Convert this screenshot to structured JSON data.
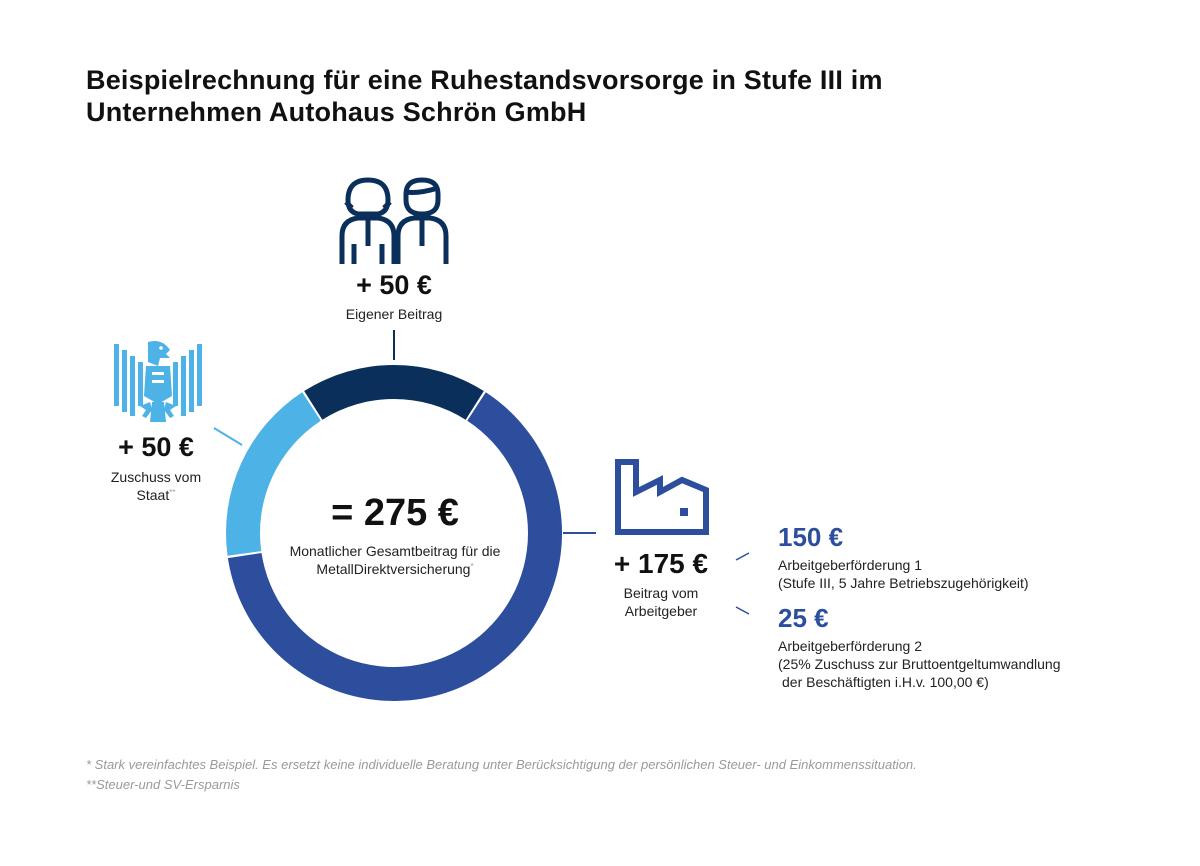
{
  "title": {
    "line1": "Beispielrechnung für eine Ruhestandsvorsorge in Stufe III im",
    "line2": "Unternehmen Autohaus Schrön GmbH"
  },
  "chart_data": {
    "type": "donut",
    "total_label": "= 275 €",
    "total_caption_1": "Monatlicher Gesamtbeitrag für die",
    "total_caption_2": "MetallDirektversicherung",
    "total_caption_mark": "*",
    "slices": [
      {
        "name": "Eigener Beitrag",
        "value": 50,
        "color": "#0b2f5b"
      },
      {
        "name": "Beitrag vom Arbeitgeber",
        "value": 175,
        "color": "#2d4e9c"
      },
      {
        "name": "Zuschuss vom Staat",
        "value": 50,
        "color": "#4db2e6"
      }
    ]
  },
  "eigener": {
    "amount": "+ 50 €",
    "label": "Eigener Beitrag",
    "icon": "couple-icon"
  },
  "staat": {
    "amount": "+ 50 €",
    "label_1": "Zuschuss vom",
    "label_2": "Staat",
    "mark": "**",
    "icon": "federal-eagle-icon"
  },
  "arbeitgeber": {
    "amount": "+ 175 €",
    "label_1": "Beitrag vom",
    "label_2": "Arbeitgeber",
    "icon": "factory-icon",
    "items": [
      {
        "value": "150 €",
        "label_1": "Arbeitgeberförderung 1",
        "label_2": "(Stufe III, 5 Jahre Betriebszugehörigkeit)"
      },
      {
        "value": "25 €",
        "label_1": "Arbeitgeberförderung 2",
        "label_2": "(25% Zuschuss zur Bruttoentgeltumwandlung",
        "label_3": "der Beschäftigten i.H.v. 100,00 €)"
      }
    ]
  },
  "footnotes": {
    "note1": "*  Stark vereinfachtes Beispiel. Es ersetzt keine individuelle Beratung unter Berücksichtigung der persönlichen Steuer- und Einkommenssituation.",
    "note2": "**Steuer-und SV-Ersparnis"
  },
  "colors": {
    "dark_navy": "#0b2f5b",
    "blue": "#2d4e9c",
    "light_blue": "#4db2e6",
    "icon_navy": "#0b2f5b",
    "factory_blue": "#2d4e9c"
  }
}
